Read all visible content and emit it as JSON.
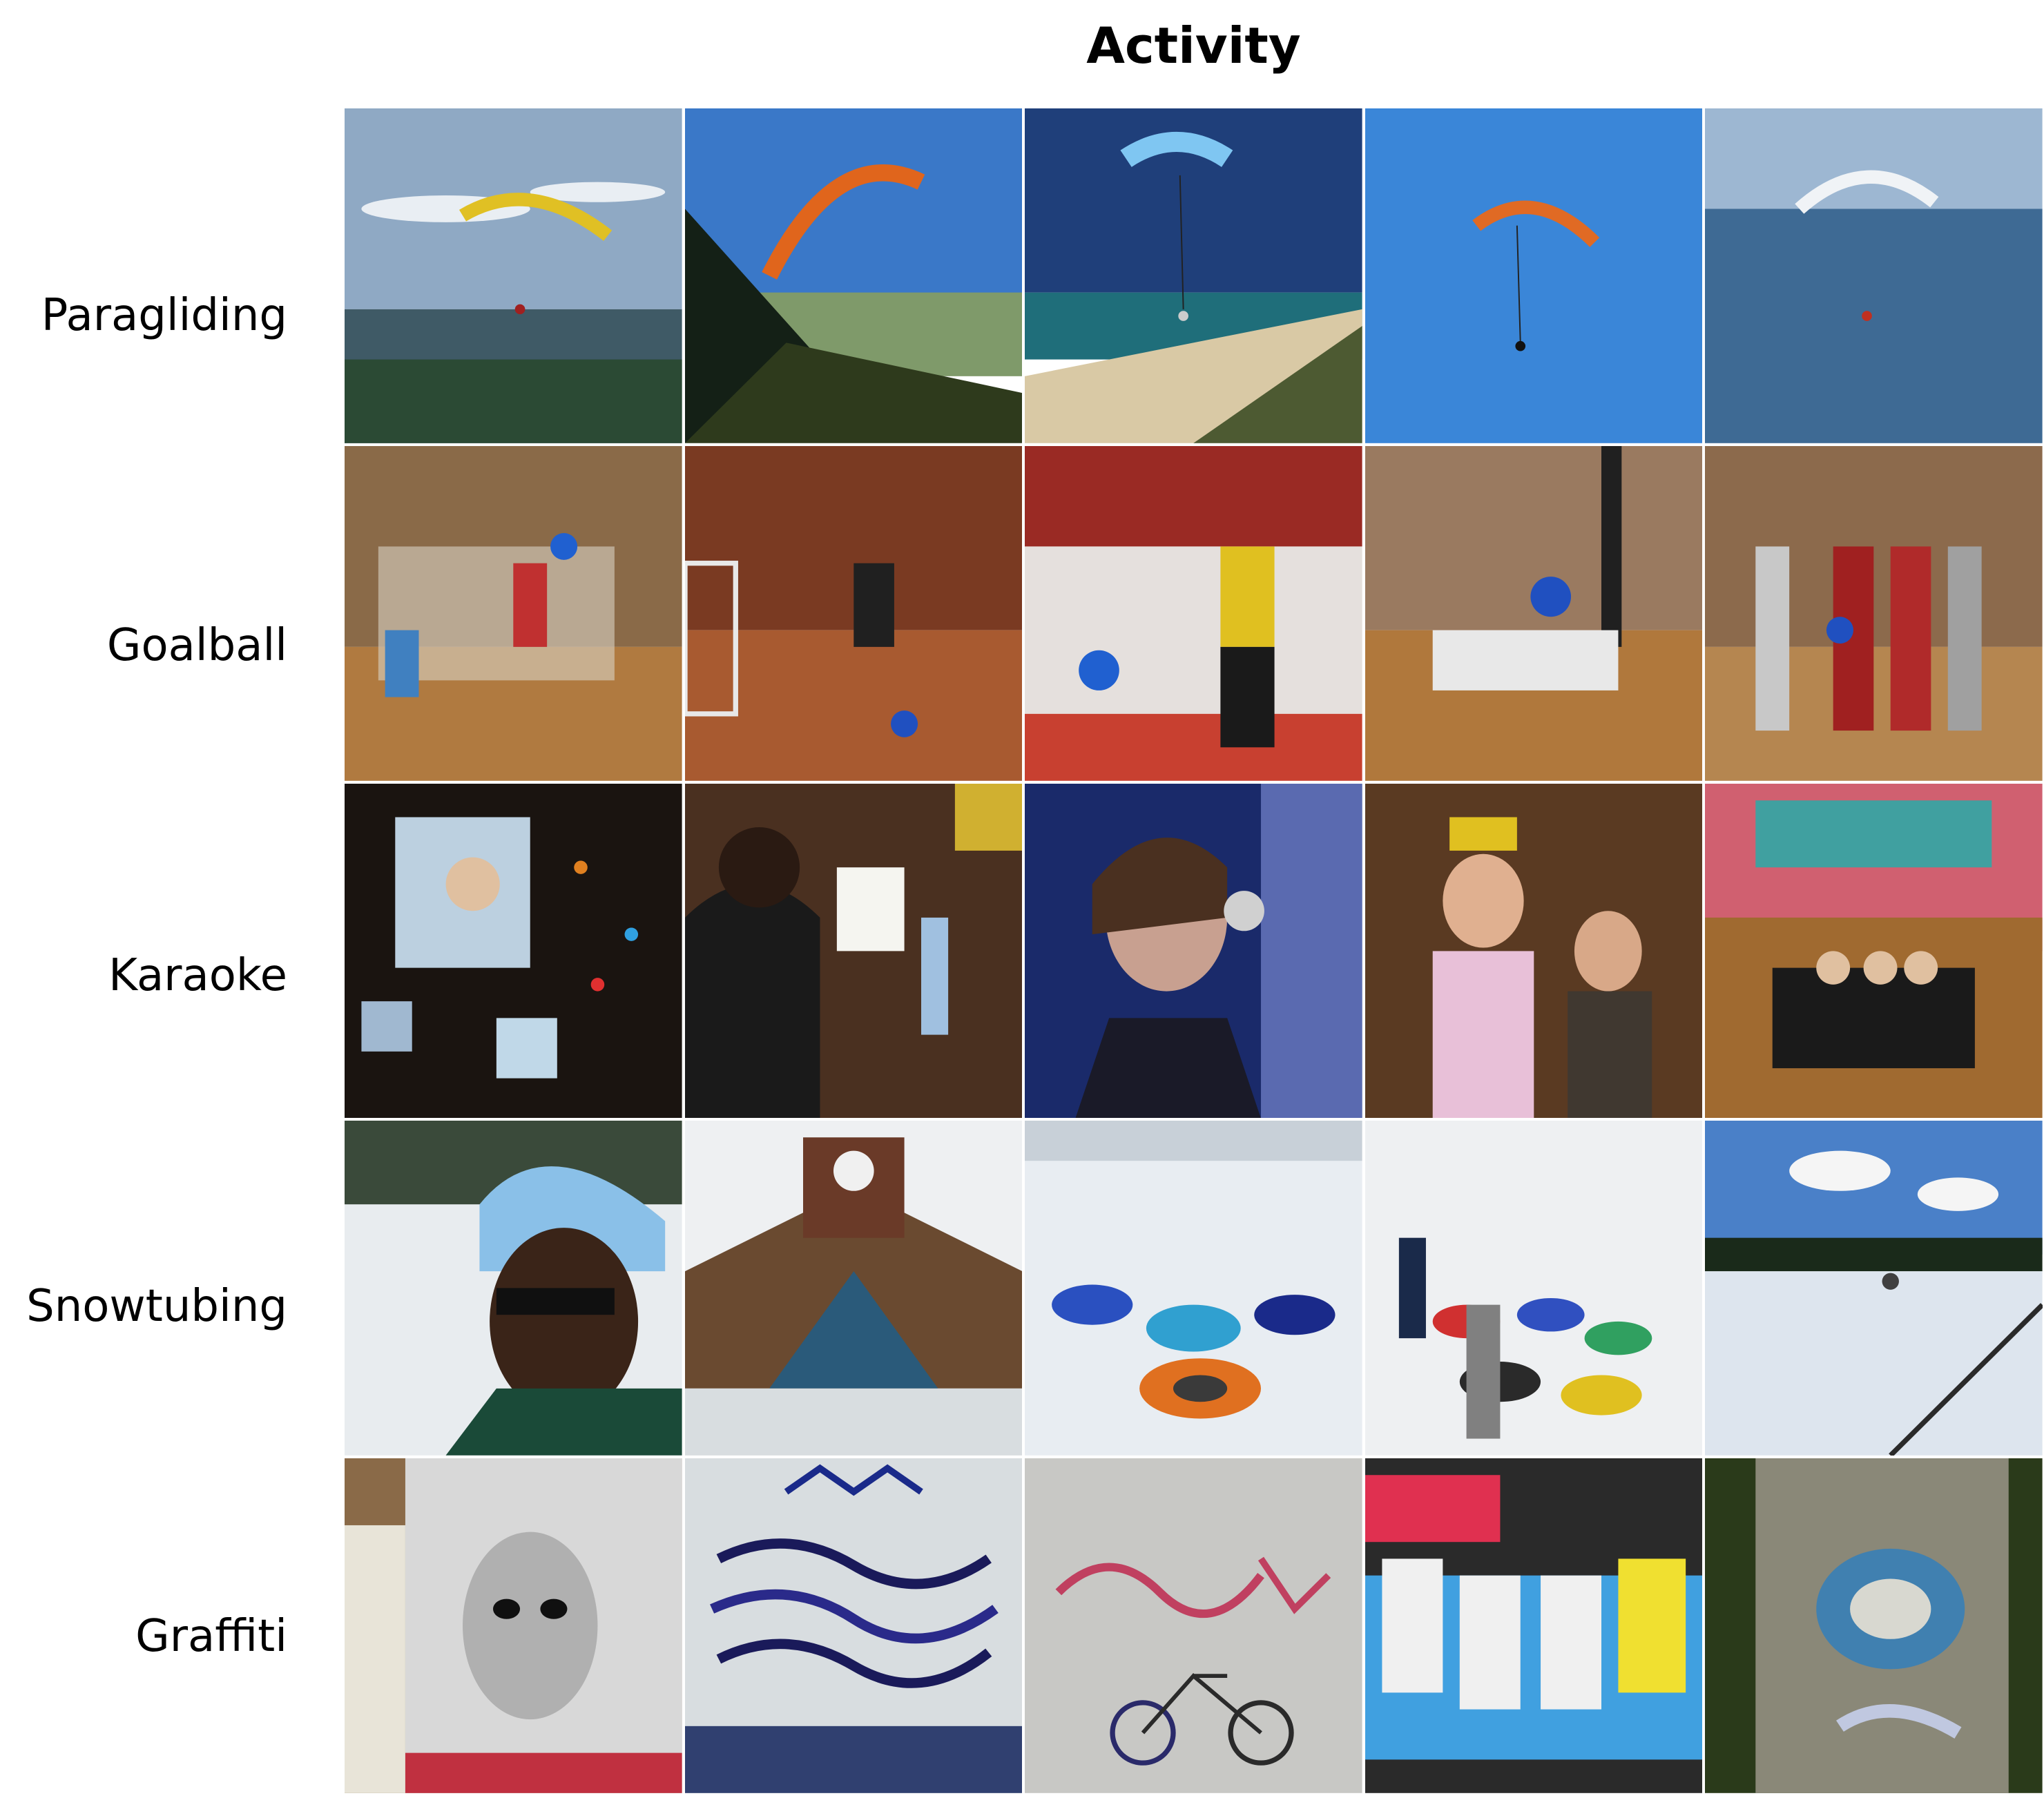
{
  "header": {
    "title": "Activity"
  },
  "rows": [
    {
      "label": "Paragliding"
    },
    {
      "label": "Goalball"
    },
    {
      "label": "Karaoke"
    },
    {
      "label": "Snowtubing"
    },
    {
      "label": "Graffiti"
    }
  ]
}
